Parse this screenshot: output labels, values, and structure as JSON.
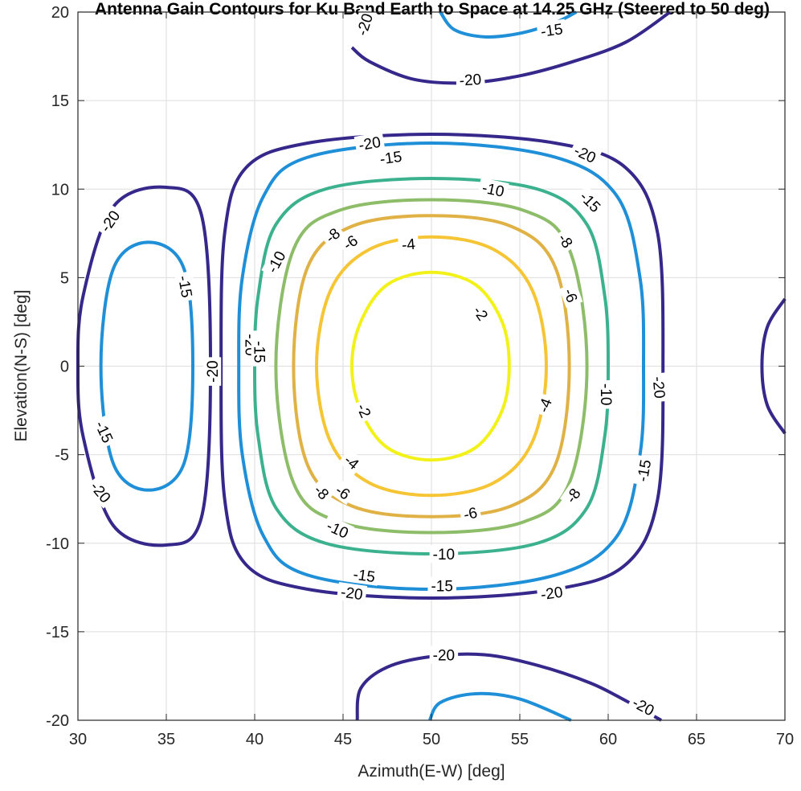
{
  "chart_data": {
    "type": "contour",
    "title": "Antenna Gain Contours for Ku Band Earth to Space at 14.25 GHz (Steered to 50 deg)",
    "xlabel": "Azimuth(E-W) [deg]",
    "ylabel": "Elevation(N-S) [deg]",
    "xlim": [
      30,
      70
    ],
    "ylim": [
      -20,
      20
    ],
    "xticks": [
      30,
      35,
      40,
      45,
      50,
      55,
      60,
      65,
      70
    ],
    "yticks": [
      -20,
      -15,
      -10,
      -5,
      0,
      5,
      10,
      15,
      20
    ],
    "grid": true,
    "levels": [
      -20,
      -15,
      -10,
      -8,
      -6,
      -4,
      -2
    ],
    "level_colors": {
      "-20": "#35288a",
      "-15": "#1f8fd8",
      "-10": "#3cb18e",
      "-8": "#8ebd6a",
      "-6": "#e0b246",
      "-4": "#f5c535",
      "-2": "#f2f21a"
    },
    "contours": [
      {
        "level": -2,
        "points": [
          [
            50,
            5.3
          ],
          [
            52.5,
            4.6
          ],
          [
            54,
            2.5
          ],
          [
            54.4,
            0
          ],
          [
            54,
            -2.5
          ],
          [
            52.5,
            -4.6
          ],
          [
            50,
            -5.3
          ],
          [
            47.5,
            -4.6
          ],
          [
            46,
            -2.5
          ],
          [
            45.5,
            0
          ],
          [
            46,
            2.5
          ],
          [
            47.5,
            4.6
          ]
        ]
      },
      {
        "level": -4,
        "points": [
          [
            50,
            7.3
          ],
          [
            53.5,
            6.6
          ],
          [
            55.7,
            4.3
          ],
          [
            56.5,
            0
          ],
          [
            55.7,
            -4.3
          ],
          [
            53.5,
            -6.6
          ],
          [
            50,
            -7.3
          ],
          [
            46.5,
            -6.6
          ],
          [
            44.3,
            -4.3
          ],
          [
            43.5,
            0
          ],
          [
            44.3,
            4.3
          ],
          [
            46.5,
            6.6
          ]
        ]
      },
      {
        "level": -6,
        "points": [
          [
            50,
            8.5
          ],
          [
            54.5,
            7.9
          ],
          [
            57,
            5.6
          ],
          [
            57.8,
            0
          ],
          [
            57,
            -5.6
          ],
          [
            54.5,
            -7.9
          ],
          [
            50,
            -8.5
          ],
          [
            45.5,
            -7.9
          ],
          [
            43,
            -5.6
          ],
          [
            42.2,
            0
          ],
          [
            43,
            5.6
          ],
          [
            45.5,
            7.9
          ]
        ]
      },
      {
        "level": -8,
        "points": [
          [
            50,
            9.4
          ],
          [
            55.2,
            8.8
          ],
          [
            57.8,
            6.6
          ],
          [
            58.8,
            0
          ],
          [
            57.8,
            -6.6
          ],
          [
            55.2,
            -8.8
          ],
          [
            50,
            -9.4
          ],
          [
            44.8,
            -8.8
          ],
          [
            42.2,
            -6.6
          ],
          [
            41.2,
            0
          ],
          [
            42.2,
            6.6
          ],
          [
            44.8,
            8.8
          ]
        ]
      },
      {
        "level": -10,
        "points": [
          [
            50,
            10.6
          ],
          [
            56,
            10
          ],
          [
            58.8,
            8
          ],
          [
            59.8,
            4
          ],
          [
            60,
            0
          ],
          [
            59.8,
            -4
          ],
          [
            58.8,
            -8
          ],
          [
            56,
            -10
          ],
          [
            50,
            -10.6
          ],
          [
            44,
            -10
          ],
          [
            41.2,
            -8
          ],
          [
            40.2,
            -4
          ],
          [
            40,
            0
          ],
          [
            40.2,
            4
          ],
          [
            41.2,
            8
          ],
          [
            44,
            10
          ]
        ]
      },
      {
        "level": -15,
        "points": [
          [
            50,
            12.6
          ],
          [
            57,
            11.8
          ],
          [
            60.5,
            9.6
          ],
          [
            61.8,
            5
          ],
          [
            62,
            0
          ],
          [
            61.8,
            -5
          ],
          [
            60.5,
            -9.6
          ],
          [
            57,
            -11.8
          ],
          [
            50,
            -12.6
          ],
          [
            43,
            -11.8
          ],
          [
            40.5,
            -9.6
          ],
          [
            39.3,
            -5
          ],
          [
            39.1,
            0
          ],
          [
            39.3,
            5
          ],
          [
            40.5,
            9.6
          ],
          [
            43,
            11.8
          ]
        ]
      },
      {
        "level": -20,
        "points": [
          [
            50,
            13.1
          ],
          [
            57,
            12.6
          ],
          [
            61,
            11.2
          ],
          [
            62.8,
            7.5
          ],
          [
            63.1,
            0
          ],
          [
            62.8,
            -7.5
          ],
          [
            61,
            -11.2
          ],
          [
            57,
            -12.6
          ],
          [
            50,
            -13.1
          ],
          [
            43,
            -12.6
          ],
          [
            39.5,
            -11.2
          ],
          [
            38.3,
            -7.5
          ],
          [
            38.1,
            0
          ],
          [
            38.3,
            7.5
          ],
          [
            39.5,
            11.2
          ],
          [
            43,
            12.6
          ]
        ]
      },
      {
        "level": -15,
        "points": [
          [
            34,
            7
          ],
          [
            36,
            5.5
          ],
          [
            36.5,
            0
          ],
          [
            36,
            -5.5
          ],
          [
            34,
            -7
          ],
          [
            32,
            -5.5
          ],
          [
            31.3,
            0
          ],
          [
            32,
            5.5
          ]
        ]
      },
      {
        "level": -20,
        "points": [
          [
            35,
            10.1
          ],
          [
            37,
            8.5
          ],
          [
            37.5,
            0
          ],
          [
            37,
            -8.5
          ],
          [
            35,
            -10.1
          ],
          [
            32,
            -9
          ],
          [
            30.3,
            -4
          ],
          [
            30,
            0
          ],
          [
            30.3,
            4
          ],
          [
            32,
            9
          ]
        ]
      }
    ],
    "open_contours": [
      {
        "level": -20,
        "points": [
          [
            45.5,
            18
          ],
          [
            46.5,
            17.2
          ],
          [
            49,
            16.2
          ],
          [
            52,
            16
          ],
          [
            55,
            16.4
          ],
          [
            58,
            17.2
          ],
          [
            61,
            18.3
          ],
          [
            63.5,
            20
          ]
        ]
      },
      {
        "level": -15,
        "points": [
          [
            50.5,
            20
          ],
          [
            51.3,
            19
          ],
          [
            53,
            18.6
          ],
          [
            55,
            18.8
          ],
          [
            57,
            19.4
          ],
          [
            58.2,
            20
          ]
        ]
      },
      {
        "level": -20,
        "points": [
          [
            45.8,
            -20
          ],
          [
            46,
            -18.2
          ],
          [
            47.5,
            -17
          ],
          [
            50,
            -16.4
          ],
          [
            53,
            -16.3
          ],
          [
            56,
            -16.9
          ],
          [
            59,
            -17.9
          ],
          [
            61,
            -18.9
          ],
          [
            63,
            -20
          ]
        ]
      },
      {
        "level": -15,
        "points": [
          [
            49.9,
            -20
          ],
          [
            50.5,
            -19
          ],
          [
            52.5,
            -18.5
          ],
          [
            55,
            -18.8
          ],
          [
            57.9,
            -20
          ]
        ]
      },
      {
        "level": -20,
        "points": [
          [
            70,
            3.8
          ],
          [
            69,
            2.2
          ],
          [
            68.7,
            0
          ],
          [
            69,
            -2.2
          ],
          [
            70,
            -3.8
          ]
        ]
      }
    ],
    "labels": [
      {
        "text": "-20",
        "x": 46.2,
        "y": 19.3,
        "angle": -72
      },
      {
        "text": "-15",
        "x": 56.8,
        "y": 19.0,
        "angle": -8
      },
      {
        "text": "-20",
        "x": 52.2,
        "y": 16.2,
        "angle": -4
      },
      {
        "text": "-20",
        "x": 46.5,
        "y": 12.6,
        "angle": -10
      },
      {
        "text": "-15",
        "x": 47.7,
        "y": 11.8,
        "angle": -8
      },
      {
        "text": "-20",
        "x": 58.7,
        "y": 12.0,
        "angle": 25
      },
      {
        "text": "-10",
        "x": 53.5,
        "y": 10.0,
        "angle": 12
      },
      {
        "text": "-15",
        "x": 59.0,
        "y": 9.3,
        "angle": 45
      },
      {
        "text": "-20",
        "x": 31.8,
        "y": 8.2,
        "angle": -55
      },
      {
        "text": "-8",
        "x": 44.4,
        "y": 7.4,
        "angle": -40
      },
      {
        "text": "-6",
        "x": 45.4,
        "y": 7.0,
        "angle": -35
      },
      {
        "text": "-4",
        "x": 48.7,
        "y": 6.9,
        "angle": -5
      },
      {
        "text": "-8",
        "x": 57.6,
        "y": 7.1,
        "angle": 55
      },
      {
        "text": "-10",
        "x": 41.2,
        "y": 5.9,
        "angle": -62
      },
      {
        "text": "-15",
        "x": 36.1,
        "y": 4.5,
        "angle": 80
      },
      {
        "text": "-6",
        "x": 57.9,
        "y": 4.0,
        "angle": 70
      },
      {
        "text": "-2",
        "x": 52.8,
        "y": 3.0,
        "angle": 55
      },
      {
        "text": "-20",
        "x": 39.8,
        "y": 1.2,
        "angle": 90
      },
      {
        "text": "-15",
        "x": 40.3,
        "y": 0.8,
        "angle": 90
      },
      {
        "text": "-20",
        "x": 37.6,
        "y": -0.3,
        "angle": -90
      },
      {
        "text": "-20",
        "x": 62.9,
        "y": -1.2,
        "angle": 85
      },
      {
        "text": "-10",
        "x": 59.9,
        "y": -1.6,
        "angle": 90
      },
      {
        "text": "-4",
        "x": 56.4,
        "y": -2.2,
        "angle": -70
      },
      {
        "text": "-2",
        "x": 46.2,
        "y": -2.5,
        "angle": 65
      },
      {
        "text": "-15",
        "x": 31.5,
        "y": -3.7,
        "angle": 65
      },
      {
        "text": "-15",
        "x": 62.0,
        "y": -5.9,
        "angle": -80
      },
      {
        "text": "-4",
        "x": 45.5,
        "y": -5.4,
        "angle": 40
      },
      {
        "text": "-6",
        "x": 45.0,
        "y": -7.1,
        "angle": 35
      },
      {
        "text": "-8",
        "x": 43.8,
        "y": -7.1,
        "angle": 45
      },
      {
        "text": "-8",
        "x": 58.0,
        "y": -7.3,
        "angle": -55
      },
      {
        "text": "-20",
        "x": 31.3,
        "y": -7.1,
        "angle": 50
      },
      {
        "text": "-6",
        "x": 52.2,
        "y": -8.3,
        "angle": -12
      },
      {
        "text": "-10",
        "x": 44.7,
        "y": -9.2,
        "angle": 25
      },
      {
        "text": "-10",
        "x": 50.7,
        "y": -10.6,
        "angle": 0
      },
      {
        "text": "-15",
        "x": 46.2,
        "y": -11.8,
        "angle": 8
      },
      {
        "text": "-15",
        "x": 50.6,
        "y": -12.4,
        "angle": 0
      },
      {
        "text": "-20",
        "x": 45.5,
        "y": -12.8,
        "angle": 8
      },
      {
        "text": "-20",
        "x": 56.8,
        "y": -12.8,
        "angle": -8
      },
      {
        "text": "-20",
        "x": 50.7,
        "y": -16.3,
        "angle": 0
      },
      {
        "text": "-20",
        "x": 62.0,
        "y": -19.2,
        "angle": 28
      }
    ]
  }
}
